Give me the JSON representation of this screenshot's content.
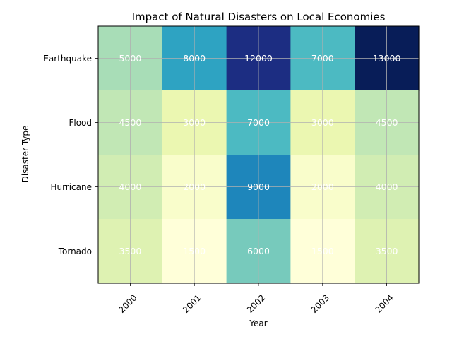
{
  "chart_data": {
    "type": "heatmap",
    "title": "Impact of Natural Disasters on Local Economies",
    "xlabel": "Year",
    "ylabel": "Disaster Type",
    "x_categories": [
      "2000",
      "2001",
      "2002",
      "2003",
      "2004"
    ],
    "y_categories": [
      "Earthquake",
      "Flood",
      "Hurricane",
      "Tornado"
    ],
    "values": [
      [
        5000,
        8000,
        12000,
        7000,
        13000
      ],
      [
        4500,
        3000,
        7000,
        3000,
        4500
      ],
      [
        4000,
        2000,
        9000,
        2000,
        4000
      ],
      [
        3500,
        1500,
        6000,
        1500,
        3500
      ]
    ],
    "colormap": "YlGnBu",
    "value_range": [
      1500,
      13000
    ],
    "grid": true,
    "legend": "none",
    "x_tick_rotation": 45
  }
}
